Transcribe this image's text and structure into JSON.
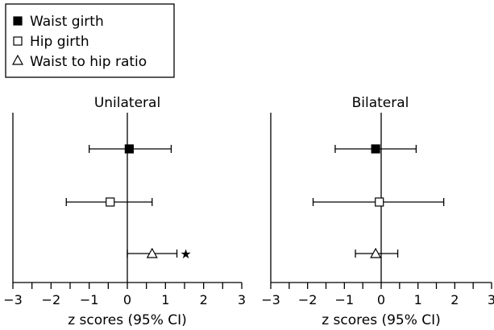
{
  "chart_data": {
    "type": "forest",
    "legend": {
      "placement": "top-left",
      "entries": [
        {
          "label": "Waist girth",
          "marker": "filled-square"
        },
        {
          "label": "Hip girth",
          "marker": "open-square"
        },
        {
          "label": "Waist to hip ratio",
          "marker": "open-triangle"
        }
      ]
    },
    "xlim": [
      -3,
      3
    ],
    "x_ticks": [
      -3,
      -2,
      -1,
      0,
      1,
      2,
      3
    ],
    "x_tick_labels": [
      "−3",
      "−2",
      "−1",
      "0",
      "1",
      "2",
      "3"
    ],
    "reference_line_x": 0,
    "panels": [
      {
        "title": "Unilateral",
        "xlabel": "z scores (95% CI)",
        "points": [
          {
            "series": "Waist girth",
            "estimate": 0.05,
            "ci_low": -1.0,
            "ci_high": 1.15
          },
          {
            "series": "Hip girth",
            "estimate": -0.45,
            "ci_low": -1.6,
            "ci_high": 0.65
          },
          {
            "series": "Waist to hip ratio",
            "estimate": 0.65,
            "ci_low": 0.0,
            "ci_high": 1.3,
            "annotation": "★"
          }
        ]
      },
      {
        "title": "Bilateral",
        "xlabel": "z scores (95% CI)",
        "points": [
          {
            "series": "Waist girth",
            "estimate": -0.15,
            "ci_low": -1.25,
            "ci_high": 0.95
          },
          {
            "series": "Hip girth",
            "estimate": -0.05,
            "ci_low": -1.85,
            "ci_high": 1.7
          },
          {
            "series": "Waist to hip ratio",
            "estimate": -0.15,
            "ci_low": -0.7,
            "ci_high": 0.45
          }
        ]
      }
    ]
  }
}
